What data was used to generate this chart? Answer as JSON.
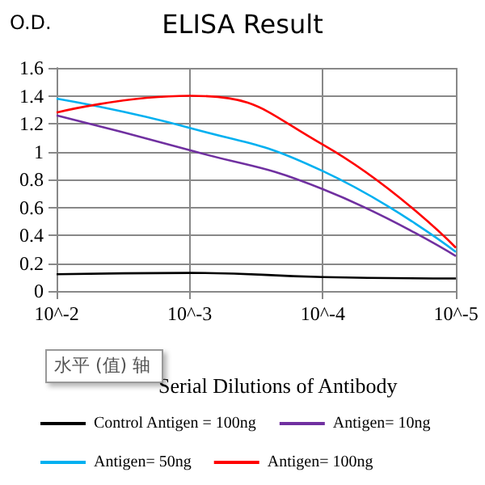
{
  "chart_data": {
    "type": "line",
    "title": "ELISA Result",
    "ylabel": "O.D.",
    "xlabel": "Serial Dilutions of Antibody",
    "categories": [
      "10^-2",
      "10^-3",
      "10^-4",
      "10^-5"
    ],
    "series": [
      {
        "name": "Control Antigen = 100ng",
        "color": "#000000",
        "values": [
          0.12,
          0.13,
          0.1,
          0.09
        ]
      },
      {
        "name": "Antigen= 10ng",
        "color": "#7030a0",
        "values": [
          1.26,
          1.01,
          0.73,
          0.25
        ]
      },
      {
        "name": "Antigen= 50ng",
        "color": "#00b0f0",
        "values": [
          1.38,
          1.17,
          0.86,
          0.28
        ]
      },
      {
        "name": "Antigen= 100ng",
        "color": "#ff0000",
        "values": [
          1.28,
          1.4,
          1.05,
          0.31
        ]
      }
    ],
    "ylim": [
      0,
      1.6
    ],
    "yticks": [
      0,
      0.2,
      0.4,
      0.6,
      0.8,
      1,
      1.2,
      1.4,
      1.6
    ],
    "grid": true,
    "legend": "bottom",
    "marker": "none",
    "line_style": "solid",
    "annotations": [
      "水平 (值) 轴"
    ]
  }
}
